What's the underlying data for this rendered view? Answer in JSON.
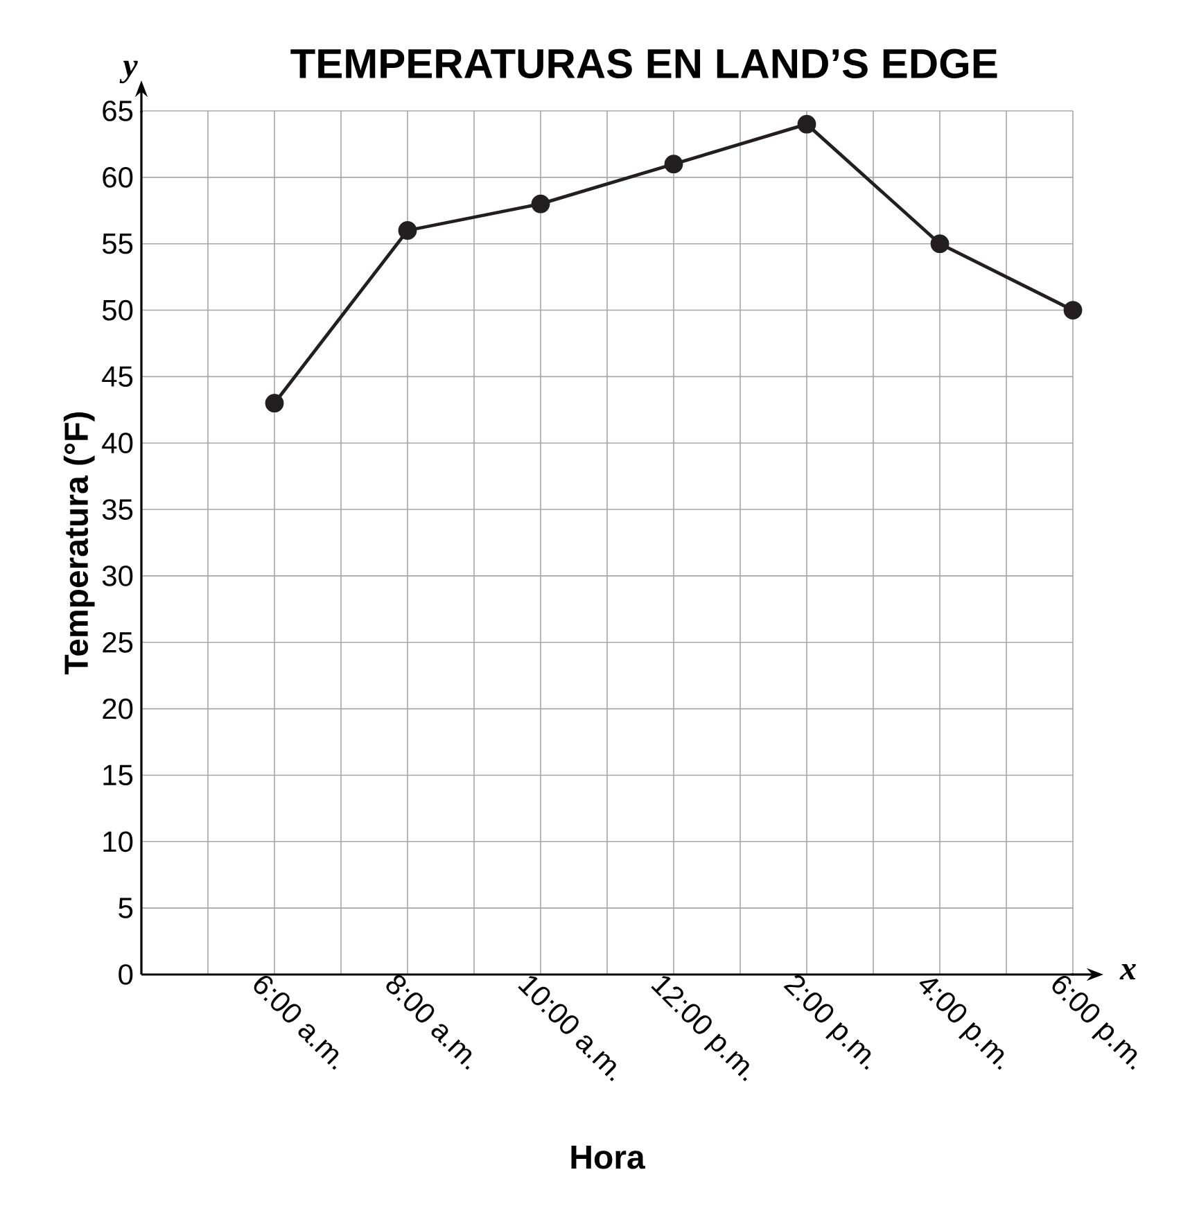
{
  "chart_data": {
    "type": "line",
    "title": "TEMPERATURAS EN LAND’S EDGE",
    "xlabel": "Hora",
    "ylabel": "Temperatura (°F)",
    "annotations": [
      "y",
      "x"
    ],
    "x": [
      6,
      8,
      10,
      12,
      14,
      16,
      18
    ],
    "series": [
      {
        "color": "#231f20",
        "values": [
          43,
          56,
          58,
          61,
          64,
          55,
          50
        ]
      }
    ],
    "xlim": [
      4,
      18
    ],
    "xticks": [
      {
        "value": 5,
        "label": null
      },
      {
        "value": 6,
        "label": "6:00 a.m."
      },
      {
        "value": 7,
        "label": null
      },
      {
        "value": 8,
        "label": "8:00 a.m."
      },
      {
        "value": 9,
        "label": null
      },
      {
        "value": 10,
        "label": "10:00 a.m."
      },
      {
        "value": 11,
        "label": null
      },
      {
        "value": 12,
        "label": "12:00 p.m."
      },
      {
        "value": 13,
        "label": null
      },
      {
        "value": 14,
        "label": "2:00 p.m."
      },
      {
        "value": 15,
        "label": null
      },
      {
        "value": 16,
        "label": "4:00 p.m."
      },
      {
        "value": 17,
        "label": null
      },
      {
        "value": 18,
        "label": "6:00 p.m."
      }
    ],
    "ylim": [
      0,
      65
    ],
    "yticks": [
      0,
      5,
      10,
      15,
      20,
      25,
      30,
      35,
      40,
      45,
      50,
      55,
      60,
      65
    ],
    "grid": true,
    "marker": "circle",
    "line_style": "solid"
  }
}
